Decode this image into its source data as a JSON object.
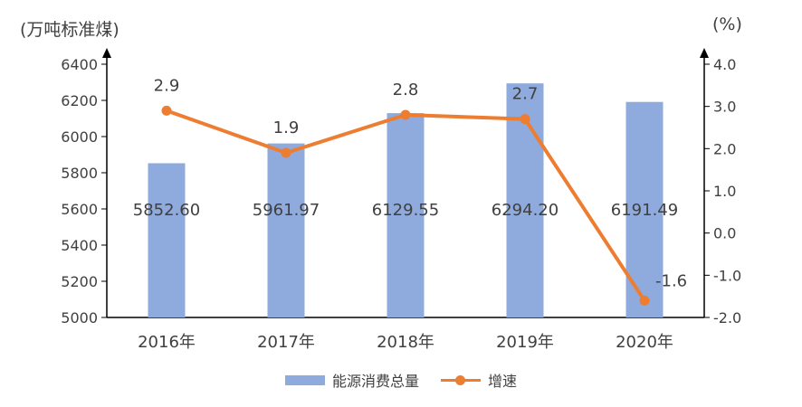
{
  "chart_data": {
    "type": "bar",
    "categories": [
      "2016年",
      "2017年",
      "2018年",
      "2019年",
      "2020年"
    ],
    "series": [
      {
        "name": "能源消费总量",
        "type": "bar",
        "axis": "left",
        "values": [
          5852.6,
          5961.97,
          6129.55,
          6294.2,
          6191.49
        ],
        "labels": [
          "5852.60",
          "5961.97",
          "6129.55",
          "6294.20",
          "6191.49"
        ],
        "color": "#8faadc"
      },
      {
        "name": "增速",
        "type": "line",
        "axis": "right",
        "values": [
          2.9,
          1.9,
          2.8,
          2.7,
          -1.6
        ],
        "labels": [
          "2.9",
          "1.9",
          "2.8",
          "2.7",
          "-1.6"
        ],
        "color": "#ed7d31"
      }
    ],
    "left_axis": {
      "unit_label": "(万吨标准煤)",
      "ylim": [
        5000,
        6400
      ],
      "ticks": [
        5000,
        5200,
        5400,
        5600,
        5800,
        6000,
        6200,
        6400
      ],
      "tick_labels": [
        "5000",
        "5200",
        "5400",
        "5600",
        "5800",
        "6000",
        "6200",
        "6400"
      ]
    },
    "right_axis": {
      "unit_label": "(%)",
      "ylim": [
        -2.0,
        4.0
      ],
      "ticks": [
        -2.0,
        -1.0,
        0.0,
        1.0,
        2.0,
        3.0,
        4.0
      ],
      "tick_labels": [
        "-2.0",
        "-1.0",
        "0.0",
        "1.0",
        "2.0",
        "3.0",
        "4.0"
      ]
    },
    "grid": false,
    "legend_position": "bottom"
  }
}
